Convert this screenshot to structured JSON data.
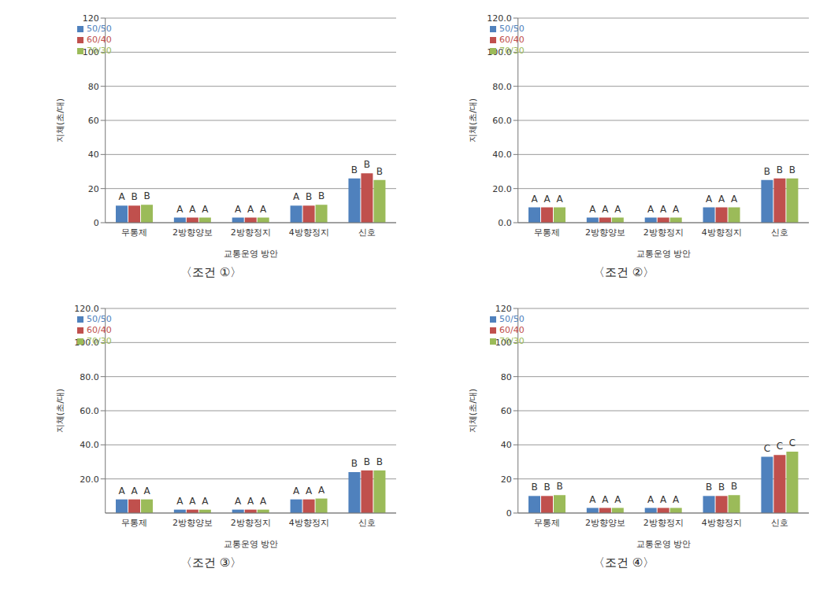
{
  "chart_data": [
    {
      "type": "bar",
      "title": "〈조건 ①〉",
      "x_label": "교통운영 방안",
      "y_label": "지체(초/대)",
      "categories": [
        "무통제",
        "2방향양보",
        "2방향정지",
        "4방향정지",
        "신호"
      ],
      "series": [
        {
          "name": "50/50",
          "color": "#4f81bd",
          "values": [
            10,
            3,
            3,
            10,
            26
          ],
          "letters": [
            "A",
            "A",
            "A",
            "A",
            "B"
          ]
        },
        {
          "name": "60/40",
          "color": "#c0504d",
          "values": [
            10,
            3,
            3,
            10,
            29
          ],
          "letters": [
            "B",
            "A",
            "A",
            "B",
            "B"
          ]
        },
        {
          "name": "70/30",
          "color": "#9bbb59",
          "values": [
            10.5,
            3,
            3,
            10.5,
            25
          ],
          "letters": [
            "B",
            "A",
            "A",
            "B",
            "B"
          ]
        }
      ],
      "ylim": [
        0,
        120
      ],
      "yticks": [
        0,
        20,
        40,
        60,
        80,
        100,
        120
      ],
      "grid": true,
      "legend": "top-left"
    },
    {
      "type": "bar",
      "title": "〈조건 ②〉",
      "x_label": "교통운영 방안",
      "y_label": "지체(초/대)",
      "categories": [
        "무통제",
        "2방향양보",
        "2방향정지",
        "4방향정지",
        "신호"
      ],
      "series": [
        {
          "name": "50/50",
          "color": "#4f81bd",
          "values": [
            9,
            3,
            3,
            9,
            25
          ],
          "letters": [
            "A",
            "A",
            "A",
            "A",
            "B"
          ]
        },
        {
          "name": "60/40",
          "color": "#c0504d",
          "values": [
            9,
            3,
            3,
            9,
            26
          ],
          "letters": [
            "A",
            "A",
            "A",
            "A",
            "B"
          ]
        },
        {
          "name": "70/30",
          "color": "#9bbb59",
          "values": [
            9,
            3,
            3,
            9,
            26
          ],
          "letters": [
            "A",
            "A",
            "A",
            "A",
            "B"
          ]
        }
      ],
      "ylim": [
        0,
        120
      ],
      "yticks": [
        {
          "value": 0,
          "label": "0.0"
        },
        {
          "value": 20,
          "label": "20.0"
        },
        {
          "value": 40,
          "label": "40.0"
        },
        {
          "value": 60,
          "label": "60.0"
        },
        {
          "value": 80,
          "label": "80.0"
        },
        {
          "value": 100,
          "label": "100.0"
        },
        {
          "value": 120,
          "label": "120.0"
        }
      ],
      "grid": true,
      "legend": "top-left"
    },
    {
      "type": "bar",
      "title": "〈조건 ③〉",
      "x_label": "교통운영 방안",
      "y_label": "지체(초/대)",
      "categories": [
        "무통제",
        "2방향양보",
        "2방향정지",
        "4방향정지",
        "신호"
      ],
      "series": [
        {
          "name": "50/50",
          "color": "#4f81bd",
          "values": [
            8,
            2,
            2,
            8,
            24
          ],
          "letters": [
            "A",
            "A",
            "A",
            "A",
            "B"
          ]
        },
        {
          "name": "60/40",
          "color": "#c0504d",
          "values": [
            8,
            2,
            2,
            8,
            25
          ],
          "letters": [
            "A",
            "A",
            "A",
            "A",
            "B"
          ]
        },
        {
          "name": "70/30",
          "color": "#9bbb59",
          "values": [
            8,
            2,
            2,
            8.5,
            25
          ],
          "letters": [
            "A",
            "A",
            "A",
            "A",
            "B"
          ]
        }
      ],
      "ylim": [
        0,
        120
      ],
      "yticks": [
        {
          "value": 20,
          "label": "20.0"
        },
        {
          "value": 40,
          "label": "40.0"
        },
        {
          "value": 60,
          "label": "60.0"
        },
        {
          "value": 80,
          "label": "80.0"
        },
        {
          "value": 100,
          "label": "100.0"
        },
        {
          "value": 120,
          "label": "120.0"
        }
      ],
      "grid": true,
      "legend": "top-left"
    },
    {
      "type": "bar",
      "title": "〈조건 ④〉",
      "x_label": "교통운영 방안",
      "y_label": "지체(초/대)",
      "categories": [
        "무통제",
        "2방향양보",
        "2방향정지",
        "4방향정지",
        "신호"
      ],
      "series": [
        {
          "name": "50/50",
          "color": "#4f81bd",
          "values": [
            10,
            3,
            3,
            10,
            33
          ],
          "letters": [
            "B",
            "A",
            "A",
            "B",
            "C"
          ]
        },
        {
          "name": "60/40",
          "color": "#c0504d",
          "values": [
            10,
            3,
            3,
            10,
            34
          ],
          "letters": [
            "B",
            "A",
            "A",
            "B",
            "C"
          ]
        },
        {
          "name": "70/30",
          "color": "#9bbb59",
          "values": [
            10.5,
            3,
            3,
            10.5,
            36
          ],
          "letters": [
            "B",
            "A",
            "A",
            "B",
            "C"
          ]
        }
      ],
      "ylim": [
        0,
        120
      ],
      "yticks": [
        0,
        20,
        40,
        60,
        80,
        100,
        120
      ],
      "grid": true,
      "legend": "top-left"
    }
  ]
}
